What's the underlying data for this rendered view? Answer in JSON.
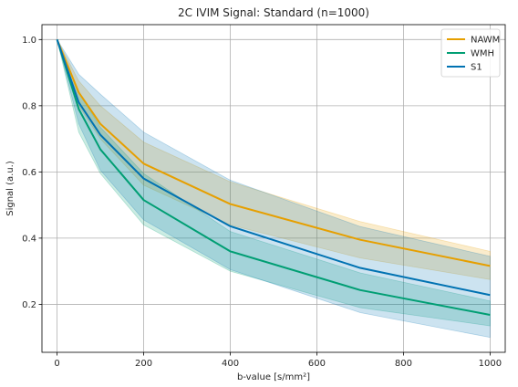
{
  "chart_data": {
    "type": "line",
    "title": "2C IVIM Signal: Standard (n=1000)",
    "xlabel": "b-value [s/mm²]",
    "ylabel": "Signal (a.u.)",
    "xlim": [
      -35,
      1035
    ],
    "ylim": [
      0.055,
      1.045
    ],
    "xticks": [
      0,
      200,
      400,
      600,
      800,
      1000
    ],
    "yticks": [
      0.2,
      0.4,
      0.6,
      0.8,
      1.0
    ],
    "xtick_labels": [
      "0",
      "200",
      "400",
      "600",
      "800",
      "1000"
    ],
    "ytick_labels": [
      "0.2",
      "0.4",
      "0.6",
      "0.8",
      "1.0"
    ],
    "grid": true,
    "legend_position": "top-right",
    "x": [
      0,
      50,
      100,
      200,
      400,
      700,
      1000
    ],
    "series": [
      {
        "name": "NAWM",
        "color": "#E69F00",
        "values": [
          1.0,
          0.84,
          0.745,
          0.625,
          0.503,
          0.395,
          0.316
        ],
        "lower": [
          1.0,
          0.8,
          0.7,
          0.56,
          0.44,
          0.34,
          0.275
        ],
        "upper": [
          1.0,
          0.875,
          0.8,
          0.69,
          0.57,
          0.45,
          0.36
        ]
      },
      {
        "name": "WMH",
        "color": "#009E73",
        "values": [
          1.0,
          0.79,
          0.668,
          0.515,
          0.36,
          0.243,
          0.168
        ],
        "lower": [
          1.0,
          0.72,
          0.595,
          0.44,
          0.3,
          0.19,
          0.135
        ],
        "upper": [
          1.0,
          0.84,
          0.735,
          0.595,
          0.42,
          0.295,
          0.21
        ]
      },
      {
        "name": "S1",
        "color": "#0072B2",
        "values": [
          1.0,
          0.81,
          0.712,
          0.58,
          0.436,
          0.31,
          0.228
        ],
        "lower": [
          1.0,
          0.745,
          0.605,
          0.455,
          0.305,
          0.175,
          0.1
        ],
        "upper": [
          1.0,
          0.895,
          0.835,
          0.72,
          0.575,
          0.435,
          0.345
        ]
      }
    ]
  }
}
